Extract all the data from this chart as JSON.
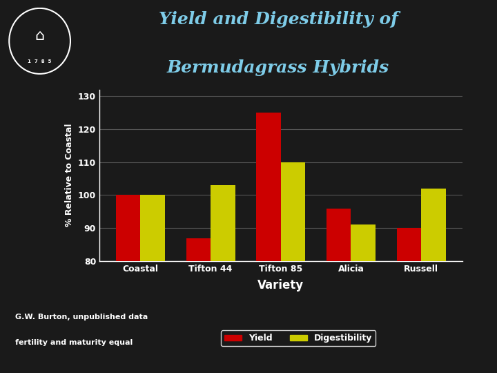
{
  "title_line1": "Yield and Digestibility of",
  "title_line2": "Bermudagrass Hybrids",
  "title_color": "#7ecce8",
  "background_color": "#1a1a1a",
  "categories": [
    "Coastal",
    "Tifton 44",
    "Tifton 85",
    "Alicia",
    "Russell"
  ],
  "yield_values": [
    100,
    87,
    125,
    96,
    90
  ],
  "digestibility_values": [
    100,
    103,
    110,
    91,
    102
  ],
  "yield_color": "#cc0000",
  "digestibility_color": "#cccc00",
  "ylabel": "% Relative to Coastal",
  "xlabel": "Variety",
  "ylim": [
    80,
    132
  ],
  "yticks": [
    80,
    90,
    100,
    110,
    120,
    130
  ],
  "footnote_line1": "G.W. Burton, unpublished data",
  "footnote_line2": "fertility and maturity equal",
  "legend_yield": "Yield",
  "legend_digest": "Digestibility",
  "bar_width": 0.35,
  "axis_text_color": "#ffffff",
  "grid_color": "#555555",
  "legend_bg": "#1a1a1a",
  "legend_edge": "#ffffff"
}
